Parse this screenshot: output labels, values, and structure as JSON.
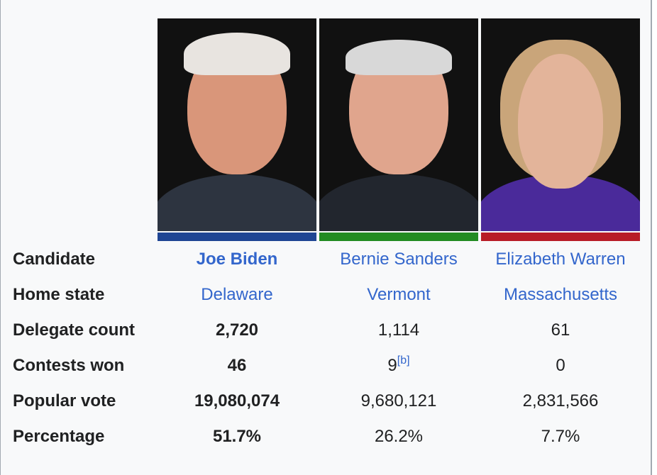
{
  "candidates": [
    {
      "name": "Joe Biden",
      "state": "Delaware",
      "delegates": "2,720",
      "contests": "46",
      "contests_note": "",
      "popular_vote": "19,080,074",
      "percentage": "51.7%",
      "color": "#1f4593",
      "winner": true
    },
    {
      "name": "Bernie Sanders",
      "state": "Vermont",
      "delegates": "1,114",
      "contests": "9",
      "contests_note": "[b]",
      "popular_vote": "9,680,121",
      "percentage": "26.2%",
      "color": "#228b22",
      "winner": false
    },
    {
      "name": "Elizabeth Warren",
      "state": "Massachusetts",
      "delegates": "61",
      "contests": "0",
      "contests_note": "",
      "popular_vote": "2,831,566",
      "percentage": "7.7%",
      "color": "#b81c27",
      "winner": false
    }
  ],
  "labels": {
    "candidate": "Candidate",
    "home_state": "Home state",
    "delegate_count": "Delegate count",
    "contests_won": "Contests won",
    "popular_vote": "Popular vote",
    "percentage": "Percentage"
  }
}
